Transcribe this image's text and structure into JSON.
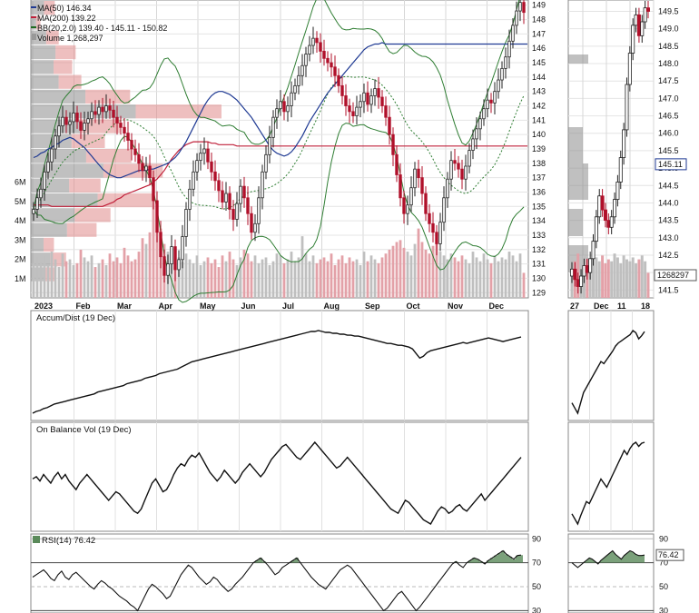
{
  "chart_data": {
    "type": "candlestick",
    "legend": {
      "ma50": "MA(50) 146.34",
      "ma200": "MA(200) 139.22",
      "bb": "BB(20,2.0) 139.40 - 145.11 - 150.82",
      "volume": "Volume 1,268,297"
    },
    "price_axis": {
      "ticks": [
        "129",
        "130",
        "131",
        "132",
        "133",
        "134",
        "135",
        "136",
        "137",
        "138",
        "139",
        "140",
        "141",
        "142",
        "143",
        "144",
        "145",
        "146",
        "147",
        "148",
        "149"
      ],
      "ylim": [
        128.7,
        149.3
      ]
    },
    "volume_axis": {
      "ticks": [
        "1M",
        "2M",
        "3M",
        "4M",
        "5M",
        "6M"
      ]
    },
    "months": [
      "2023",
      "Feb",
      "Mar",
      "Apr",
      "May",
      "Jun",
      "Jul",
      "Aug",
      "Sep",
      "Oct",
      "Nov",
      "Dec"
    ],
    "zoom": {
      "price_ticks": [
        "141.5",
        "142.0",
        "142.5",
        "143.0",
        "143.5",
        "144.0",
        "144.5",
        "145.0",
        "145.5",
        "146.0",
        "146.5",
        "147.0",
        "147.5",
        "148.0",
        "148.5",
        "149.0",
        "149.5"
      ],
      "ylim": [
        141.3,
        149.8
      ],
      "price_badge": "145.11",
      "volume_badge": "1268297",
      "dates": [
        "27",
        "Dec",
        "11",
        "18"
      ]
    },
    "series": {
      "close": [
        134.8,
        135.6,
        136.2,
        137.4,
        138.1,
        139.0,
        139.9,
        140.6,
        141.2,
        140.7,
        140.9,
        141.5,
        140.9,
        140.3,
        140.8,
        141.1,
        141.6,
        141.4,
        141.9,
        141.6,
        142.0,
        141.7,
        141.2,
        140.8,
        140.5,
        140.1,
        139.6,
        139.0,
        138.6,
        138.0,
        137.5,
        137.8,
        137.0,
        135.4,
        133.2,
        131.5,
        130.2,
        131.0,
        132.2,
        130.6,
        131.3,
        132.9,
        134.8,
        136.2,
        137.4,
        138.2,
        138.7,
        139.0,
        138.1,
        137.4,
        136.8,
        136.1,
        135.3,
        135.9,
        134.8,
        134.1,
        135.2,
        136.4,
        135.6,
        134.5,
        133.2,
        133.8,
        135.6,
        137.4,
        138.6,
        139.8,
        141.2,
        141.8,
        142.3,
        141.6,
        142.0,
        142.9,
        143.4,
        144.1,
        144.8,
        145.6,
        146.2,
        146.7,
        146.4,
        145.8,
        145.3,
        145.0,
        144.7,
        144.1,
        143.4,
        142.7,
        142.0,
        141.6,
        141.3,
        141.9,
        142.3,
        142.9,
        142.1,
        142.7,
        143.2,
        142.6,
        142.0,
        141.2,
        140.0,
        138.6,
        137.2,
        135.6,
        134.5,
        135.1,
        136.3,
        137.6,
        137.0,
        135.9,
        134.5,
        133.8,
        133.2,
        132.4,
        133.9,
        135.6,
        136.9,
        138.2,
        138.0,
        137.6,
        136.9,
        137.8,
        138.9,
        139.7,
        140.4,
        141.1,
        141.8,
        142.4,
        142.2,
        143.0,
        143.8,
        144.6,
        145.4,
        146.5,
        147.6,
        148.6,
        149.2,
        148.5
      ],
      "ma50": [
        138.4,
        138.5,
        138.7,
        138.8,
        139.0,
        139.1,
        139.3,
        139.4,
        139.6,
        139.7,
        139.8,
        139.7,
        139.5,
        139.3,
        139.1,
        138.8,
        138.5,
        138.2,
        137.9,
        137.6,
        137.4,
        137.2,
        137.1,
        137.0,
        137.0,
        137.1,
        137.2,
        137.3,
        137.4,
        137.5,
        137.5,
        137.5,
        137.6,
        137.6,
        137.7,
        137.8,
        137.9,
        138.0,
        138.2,
        138.4,
        138.7,
        139.1,
        139.5,
        140.0,
        140.5,
        141.0,
        141.5,
        142.0,
        142.4,
        142.7,
        142.9,
        143.0,
        143.0,
        142.9,
        142.8,
        142.6,
        142.4,
        142.1,
        141.8,
        141.5,
        141.2,
        140.8,
        140.4,
        140.0,
        139.6,
        139.2,
        138.9,
        138.7,
        138.6,
        138.5,
        138.6,
        138.8,
        139.1,
        139.5,
        139.9,
        140.4,
        140.9,
        141.3,
        141.7,
        142.1,
        142.5,
        142.9,
        143.2,
        143.5,
        143.8,
        144.1,
        144.4,
        144.7,
        145.0,
        145.3,
        145.6,
        145.9,
        146.1,
        146.2,
        146.3,
        146.3,
        146.4,
        146.3,
        146.3,
        146.3,
        146.3,
        146.3,
        146.3,
        146.3,
        146.3,
        146.3,
        146.3,
        146.3,
        146.3,
        146.3,
        146.3,
        146.3,
        146.3,
        146.3,
        146.3,
        146.3,
        146.3,
        146.3,
        146.3,
        146.3,
        146.3,
        146.3,
        146.3,
        146.3,
        146.3,
        146.3,
        146.3,
        146.3,
        146.3,
        146.3,
        146.3,
        146.3,
        146.3,
        146.3,
        146.3,
        146.3,
        146.3
      ],
      "ma200": [
        135.1,
        135.1,
        135.1,
        135.1,
        135.1,
        135.0,
        135.0,
        135.0,
        135.0,
        135.0,
        135.0,
        135.0,
        135.0,
        135.0,
        135.0,
        135.0,
        135.0,
        135.0,
        135.0,
        135.0,
        135.1,
        135.2,
        135.3,
        135.5,
        135.6,
        135.8,
        135.9,
        136.0,
        136.1,
        136.2,
        136.3,
        136.4,
        136.5,
        136.7,
        136.9,
        137.2,
        137.5,
        137.9,
        138.3,
        138.6,
        138.9,
        139.1,
        139.3,
        139.4,
        139.5,
        139.5,
        139.5,
        139.5,
        139.5,
        139.4,
        139.4,
        139.3,
        139.3,
        139.3,
        139.3,
        139.3,
        139.2,
        139.2,
        139.2,
        139.2,
        139.2,
        139.2,
        139.2,
        139.2,
        139.2,
        139.2,
        139.2,
        139.2,
        139.2,
        139.2,
        139.2,
        139.2,
        139.2,
        139.2,
        139.2,
        139.2,
        139.2,
        139.2,
        139.2,
        139.2,
        139.2,
        139.2,
        139.2,
        139.2,
        139.2,
        139.2,
        139.2,
        139.2,
        139.2,
        139.2,
        139.2,
        139.2,
        139.2,
        139.2,
        139.2,
        139.2,
        139.2,
        139.2,
        139.2,
        139.2,
        139.2,
        139.2,
        139.2,
        139.2,
        139.2,
        139.2,
        139.2,
        139.2,
        139.2,
        139.2,
        139.2,
        139.2,
        139.2,
        139.2,
        139.2,
        139.2,
        139.2,
        139.2,
        139.2,
        139.2,
        139.2,
        139.2,
        139.2,
        139.2,
        139.2,
        139.2,
        139.2,
        139.2,
        139.2,
        139.2,
        139.2,
        139.2,
        139.2,
        139.2,
        139.2,
        139.2,
        139.2
      ],
      "volume": [
        1.8,
        2.1,
        1.9,
        2.2,
        1.7,
        2.4,
        2.0,
        1.6,
        2.3,
        1.9,
        2.0,
        1.7,
        1.8,
        2.5,
        2.1,
        1.9,
        2.2,
        1.6,
        1.8,
        2.0,
        1.7,
        2.3,
        1.9,
        2.1,
        1.8,
        2.6,
        2.2,
        1.9,
        2.0,
        2.4,
        3.1,
        2.8,
        3.4,
        5.2,
        4.1,
        3.6,
        2.8,
        2.4,
        2.2,
        2.6,
        2.1,
        1.9,
        2.3,
        2.0,
        1.8,
        2.2,
        1.7,
        1.9,
        2.1,
        1.8,
        2.0,
        1.6,
        2.2,
        1.9,
        2.4,
        2.0,
        1.7,
        2.1,
        2.5,
        2.3,
        1.9,
        2.2,
        1.8,
        2.0,
        2.1,
        1.7,
        1.9,
        2.3,
        2.2,
        1.8,
        2.0,
        2.4,
        1.9,
        2.1,
        3.2,
        2.3,
        1.9,
        2.2,
        1.8,
        2.0,
        2.1,
        1.9,
        2.3,
        1.7,
        2.0,
        2.2,
        1.8,
        2.1,
        1.9,
        2.0,
        1.7,
        2.4,
        1.9,
        2.2,
        2.0,
        1.8,
        2.1,
        2.3,
        2.5,
        2.7,
        2.9,
        3.0,
        2.6,
        2.4,
        2.2,
        2.8,
        3.6,
        2.9,
        2.5,
        2.3,
        2.7,
        3.1,
        2.4,
        2.2,
        2.0,
        2.3,
        2.1,
        1.9,
        2.2,
        2.0,
        1.8,
        2.4,
        2.1,
        1.9,
        2.3,
        2.0,
        1.8,
        2.2,
        1.9,
        2.1,
        2.0,
        2.4,
        2.2,
        1.9,
        2.3,
        1.3
      ]
    },
    "zoom_series": {
      "close": [
        142.1,
        141.8,
        141.6,
        141.9,
        142.2,
        142.0,
        142.4,
        142.9,
        143.6,
        144.2,
        143.8,
        143.5,
        143.3,
        143.6,
        144.1,
        144.6,
        145.3,
        146.1,
        147.4,
        148.3,
        149.1,
        149.4,
        148.8,
        149.2,
        149.6,
        149.5
      ],
      "volume": [
        2.1,
        1.9,
        2.3,
        1.8,
        2.2,
        2.0,
        1.7,
        2.4,
        2.1,
        1.9,
        2.2,
        1.8,
        2.0,
        1.9,
        2.3,
        2.1,
        1.8,
        2.2,
        2.0,
        1.9,
        2.1,
        1.8,
        2.0,
        2.2,
        1.9,
        1.3
      ]
    },
    "accum_dist": {
      "label": "Accum/Dist (19 Dec)",
      "values": [
        10,
        12,
        13,
        15,
        16,
        18,
        20,
        21,
        22,
        23,
        24,
        25,
        26,
        27,
        28,
        29,
        30,
        31,
        33,
        34,
        35,
        36,
        37,
        38,
        39,
        40,
        42,
        43,
        44,
        45,
        46,
        48,
        49,
        50,
        51,
        53,
        54,
        55,
        56,
        57,
        58,
        60,
        62,
        64,
        66,
        67,
        68,
        69,
        70,
        71,
        72,
        73,
        74,
        75,
        76,
        77,
        78,
        79,
        80,
        81,
        82,
        83,
        84,
        85,
        86,
        87,
        88,
        89,
        90,
        91,
        92,
        93,
        94,
        95,
        96,
        97,
        98,
        99,
        99,
        100,
        99,
        98,
        98,
        97,
        97,
        96,
        96,
        95,
        95,
        94,
        94,
        93,
        92,
        91,
        90,
        89,
        88,
        87,
        86,
        86,
        85,
        84,
        84,
        83,
        82,
        80,
        75,
        70,
        72,
        76,
        78,
        79,
        80,
        81,
        82,
        83,
        84,
        85,
        86,
        87,
        86,
        87,
        88,
        89,
        90,
        91,
        92,
        91,
        90,
        89,
        88,
        89,
        90,
        91,
        92,
        93
      ],
      "zoom_values": [
        30,
        25,
        20,
        30,
        40,
        45,
        50,
        55,
        60,
        65,
        70,
        68,
        72,
        76,
        80,
        85,
        88,
        90,
        92,
        94,
        96,
        100,
        98,
        92,
        95,
        99
      ]
    },
    "obv": {
      "label": "On Balance Vol (19 Dec)",
      "values": [
        60,
        62,
        58,
        64,
        60,
        56,
        62,
        66,
        60,
        64,
        58,
        54,
        50,
        56,
        60,
        64,
        60,
        56,
        52,
        48,
        44,
        40,
        44,
        48,
        46,
        42,
        38,
        34,
        30,
        28,
        32,
        40,
        48,
        56,
        60,
        54,
        48,
        50,
        56,
        64,
        70,
        74,
        72,
        78,
        82,
        80,
        84,
        78,
        72,
        66,
        62,
        58,
        62,
        68,
        64,
        60,
        56,
        60,
        66,
        70,
        74,
        70,
        66,
        62,
        66,
        72,
        78,
        82,
        86,
        90,
        92,
        88,
        84,
        80,
        78,
        82,
        86,
        90,
        94,
        90,
        86,
        82,
        78,
        74,
        70,
        72,
        76,
        80,
        76,
        72,
        68,
        64,
        60,
        56,
        52,
        48,
        44,
        40,
        36,
        32,
        30,
        28,
        34,
        40,
        38,
        34,
        30,
        26,
        22,
        20,
        18,
        24,
        30,
        34,
        32,
        28,
        30,
        34,
        36,
        32,
        30,
        34,
        38,
        42,
        46,
        40,
        44,
        48,
        52,
        56,
        60,
        64,
        68,
        72,
        76,
        80
      ],
      "zoom_values": [
        30,
        25,
        20,
        28,
        35,
        42,
        40,
        46,
        52,
        58,
        64,
        60,
        56,
        62,
        68,
        74,
        80,
        86,
        92,
        88,
        94,
        98,
        100,
        96,
        99,
        100
      ]
    },
    "rsi": {
      "label": "RSI(14) 76.42",
      "badge": "76.42",
      "ticks": [
        "30",
        "50",
        "70",
        "90"
      ],
      "ylim": [
        28,
        94
      ],
      "values": [
        58,
        60,
        62,
        64,
        61,
        57,
        55,
        60,
        63,
        58,
        56,
        60,
        62,
        59,
        56,
        53,
        50,
        48,
        52,
        55,
        53,
        50,
        48,
        45,
        42,
        40,
        38,
        35,
        33,
        30,
        36,
        42,
        48,
        52,
        50,
        47,
        44,
        40,
        42,
        48,
        54,
        60,
        64,
        68,
        66,
        62,
        58,
        55,
        52,
        54,
        58,
        56,
        52,
        49,
        46,
        48,
        52,
        55,
        58,
        62,
        66,
        70,
        72,
        74,
        71,
        68,
        64,
        60,
        62,
        66,
        68,
        70,
        72,
        74,
        70,
        66,
        62,
        58,
        55,
        52,
        50,
        48,
        52,
        56,
        60,
        64,
        66,
        68,
        66,
        62,
        58,
        54,
        50,
        46,
        42,
        38,
        34,
        30,
        32,
        36,
        40,
        44,
        46,
        42,
        38,
        34,
        30,
        33,
        37,
        41,
        45,
        49,
        53,
        57,
        61,
        65,
        69,
        71,
        68,
        66,
        70,
        72,
        74,
        73,
        71,
        69,
        72,
        74,
        76,
        78,
        80,
        77,
        75,
        73,
        76,
        76.4
      ],
      "zoom_values": [
        70,
        68,
        66,
        68,
        70,
        72,
        74,
        73,
        71,
        69,
        72,
        74,
        76,
        78,
        80,
        77,
        75,
        73,
        76,
        78,
        80,
        79,
        77,
        76,
        76,
        76.4
      ]
    }
  }
}
